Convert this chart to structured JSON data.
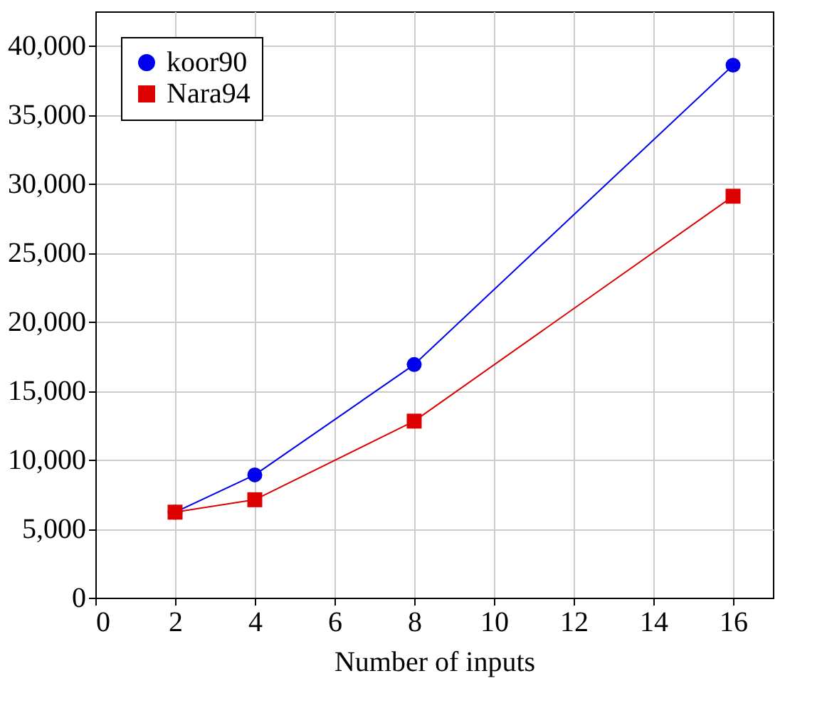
{
  "chart_data": {
    "type": "line",
    "xlabel": "Number of inputs",
    "x": [
      2,
      4,
      8,
      16
    ],
    "series": [
      {
        "name": "koor90",
        "color": "#0000ee",
        "marker": "circle",
        "values": [
          6200,
          8900,
          16900,
          38600
        ]
      },
      {
        "name": "Nara94",
        "color": "#dd0000",
        "marker": "square",
        "values": [
          6200,
          7100,
          12800,
          29100
        ]
      }
    ],
    "xlim": [
      0,
      17
    ],
    "xticks": [
      0,
      2,
      4,
      6,
      8,
      10,
      12,
      14,
      16
    ],
    "ylim": [
      0,
      42500
    ],
    "yticks": [
      0,
      {
        "value": 5000,
        "label": "5,000"
      },
      {
        "value": 10000,
        "label": "10,000"
      },
      {
        "value": 15000,
        "label": "15,000"
      },
      {
        "value": 20000,
        "label": "20,000"
      },
      {
        "value": 25000,
        "label": "25,000"
      },
      {
        "value": 30000,
        "label": "30,000"
      },
      {
        "value": 35000,
        "label": "35,000"
      },
      {
        "value": 40000,
        "label": "40,000"
      }
    ],
    "grid": true,
    "legend": "top left",
    "line_style": "solid"
  }
}
